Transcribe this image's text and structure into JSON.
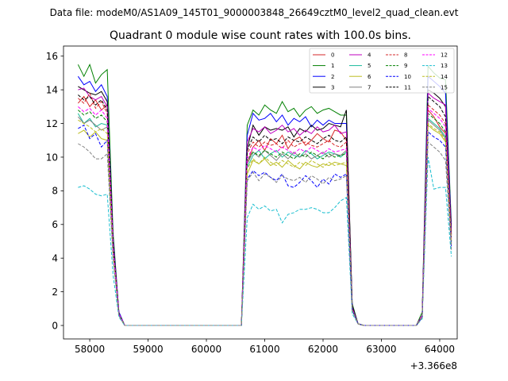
{
  "figure": {
    "suptitle": "Data file: modeM0/AS1A09_145T01_9000003848_26649cztM0_level2_quad_clean.evt"
  },
  "chart_data": {
    "type": "line",
    "title": "Quadrant 0 module wise count rates with 100.0s bins.",
    "xlabel": "",
    "ylabel": "",
    "x_offset_label": "+3.366e8",
    "xlim": [
      57550,
      64300
    ],
    "ylim": [
      -0.8,
      16.6
    ],
    "x_ticks": [
      58000,
      59000,
      60000,
      61000,
      62000,
      63000,
      64000
    ],
    "y_ticks": [
      0,
      2,
      4,
      6,
      8,
      10,
      12,
      14,
      16
    ],
    "grid": false,
    "legend_position": "top-right",
    "legend_columns": 4,
    "x": [
      57800,
      57900,
      58000,
      58100,
      58200,
      58300,
      58400,
      58500,
      58600,
      58700,
      58800,
      58900,
      59000,
      59100,
      59200,
      59300,
      59400,
      59500,
      59600,
      59700,
      59800,
      59900,
      60000,
      60100,
      60200,
      60300,
      60400,
      60500,
      60600,
      60700,
      60800,
      60900,
      61000,
      61100,
      61200,
      61300,
      61400,
      61500,
      61600,
      61700,
      61800,
      61900,
      62000,
      62100,
      62200,
      62300,
      62400,
      62500,
      62600,
      62700,
      62800,
      62900,
      63000,
      63100,
      63200,
      63300,
      63400,
      63500,
      63600,
      63700,
      63800,
      63900,
      64000,
      64100,
      64200
    ],
    "series": [
      {
        "name": "0",
        "color": "#d62728",
        "dash": "solid",
        "values": [
          13.2,
          13.6,
          13.0,
          13.4,
          12.8,
          13.1,
          5.3,
          0.7,
          0,
          0,
          0,
          0,
          0,
          0,
          0,
          0,
          0,
          0,
          0,
          0,
          0,
          0,
          0,
          0,
          0,
          0,
          0,
          0,
          0,
          9.6,
          10.6,
          11.0,
          10.4,
          11.1,
          10.8,
          11.3,
          10.5,
          11.0,
          11.2,
          10.7,
          11.0,
          11.4,
          11.1,
          10.9,
          11.6,
          11.5,
          11.0,
          1.0,
          0.1,
          0,
          0,
          0,
          0,
          0,
          0,
          0,
          0,
          0,
          0,
          0.5,
          12.8,
          12.4,
          11.8,
          11.4,
          5.4
        ]
      },
      {
        "name": "1",
        "color": "#008000",
        "dash": "solid",
        "values": [
          15.5,
          14.8,
          15.5,
          14.4,
          14.9,
          15.2,
          5.5,
          0.8,
          0,
          0,
          0,
          0,
          0,
          0,
          0,
          0,
          0,
          0,
          0,
          0,
          0,
          0,
          0,
          0,
          0,
          0,
          0,
          0,
          0,
          11.9,
          12.8,
          12.5,
          13.1,
          12.8,
          12.6,
          13.3,
          12.7,
          12.9,
          12.4,
          12.8,
          13.0,
          12.6,
          12.8,
          12.9,
          12.7,
          12.5,
          12.5,
          1.3,
          0.1,
          0,
          0,
          0,
          0,
          0,
          0,
          0,
          0,
          0,
          0,
          0.8,
          15.4,
          15.0,
          14.7,
          14.6,
          6.0
        ]
      },
      {
        "name": "2",
        "color": "#0000ff",
        "dash": "solid",
        "values": [
          14.8,
          14.3,
          14.5,
          13.9,
          14.3,
          13.6,
          5.2,
          0.8,
          0,
          0,
          0,
          0,
          0,
          0,
          0,
          0,
          0,
          0,
          0,
          0,
          0,
          0,
          0,
          0,
          0,
          0,
          0,
          0,
          0,
          11.3,
          12.6,
          12.2,
          12.3,
          12.6,
          12.1,
          12.5,
          11.9,
          12.3,
          12.1,
          12.4,
          11.8,
          12.2,
          11.9,
          12.2,
          12.0,
          12.0,
          12.0,
          1.2,
          0.1,
          0,
          0,
          0,
          0,
          0,
          0,
          0,
          0,
          0,
          0,
          0.6,
          14.8,
          14.5,
          14.2,
          13.8,
          5.8
        ]
      },
      {
        "name": "3",
        "color": "#000000",
        "dash": "solid",
        "values": [
          14.2,
          14.0,
          13.8,
          13.7,
          13.9,
          13.3,
          5.0,
          0.7,
          0,
          0,
          0,
          0,
          0,
          0,
          0,
          0,
          0,
          0,
          0,
          0,
          0,
          0,
          0,
          0,
          0,
          0,
          0,
          0,
          0,
          10.5,
          11.9,
          11.3,
          11.8,
          11.6,
          11.7,
          11.6,
          11.8,
          11.2,
          11.7,
          11.5,
          11.9,
          11.6,
          11.7,
          12.0,
          11.9,
          11.8,
          12.8,
          1.2,
          0.1,
          0,
          0,
          0,
          0,
          0,
          0,
          0,
          0,
          0,
          0,
          0.6,
          14.0,
          13.8,
          13.5,
          13.0,
          5.6
        ]
      },
      {
        "name": "4",
        "color": "#bf00bf",
        "dash": "solid",
        "values": [
          14.0,
          14.1,
          13.6,
          13.4,
          13.6,
          13.0,
          4.9,
          0.7,
          0,
          0,
          0,
          0,
          0,
          0,
          0,
          0,
          0,
          0,
          0,
          0,
          0,
          0,
          0,
          0,
          0,
          0,
          0,
          0,
          0,
          10.9,
          11.7,
          11.5,
          11.8,
          11.4,
          11.6,
          11.9,
          11.5,
          11.7,
          11.3,
          11.6,
          11.4,
          11.8,
          11.5,
          11.6,
          11.9,
          11.4,
          11.5,
          1.1,
          0.1,
          0,
          0,
          0,
          0,
          0,
          0,
          0,
          0,
          0,
          0,
          0.6,
          13.8,
          13.5,
          13.3,
          13.1,
          5.5
        ]
      },
      {
        "name": "5",
        "color": "#1abc9c",
        "dash": "solid",
        "values": [
          12.6,
          12.0,
          12.3,
          11.8,
          12.0,
          11.9,
          4.5,
          0.6,
          0,
          0,
          0,
          0,
          0,
          0,
          0,
          0,
          0,
          0,
          0,
          0,
          0,
          0,
          0,
          0,
          0,
          0,
          0,
          0,
          0,
          9.4,
          10.1,
          10.4,
          9.9,
          10.2,
          10.4,
          10.0,
          10.3,
          10.1,
          10.0,
          10.4,
          10.2,
          9.9,
          10.1,
          10.3,
          10.2,
          10.0,
          10.3,
          1.0,
          0.1,
          0,
          0,
          0,
          0,
          0,
          0,
          0,
          0,
          0,
          0,
          0.5,
          12.3,
          12.0,
          11.7,
          11.2,
          5.0
        ]
      },
      {
        "name": "6",
        "color": "#bcbd22",
        "dash": "solid",
        "values": [
          11.4,
          11.6,
          11.2,
          11.5,
          11.1,
          11.0,
          4.2,
          0.6,
          0,
          0,
          0,
          0,
          0,
          0,
          0,
          0,
          0,
          0,
          0,
          0,
          0,
          0,
          0,
          0,
          0,
          0,
          0,
          0,
          0,
          9.0,
          9.8,
          9.6,
          9.9,
          9.5,
          9.7,
          9.4,
          9.8,
          9.5,
          9.3,
          9.7,
          9.5,
          9.4,
          9.6,
          9.5,
          9.7,
          9.6,
          9.5,
          0.9,
          0.1,
          0,
          0,
          0,
          0,
          0,
          0,
          0,
          0,
          0,
          0,
          0.5,
          11.9,
          11.6,
          11.4,
          10.9,
          4.8
        ]
      },
      {
        "name": "7",
        "color": "#808080",
        "dash": "solid",
        "values": [
          12.4,
          12.0,
          12.2,
          11.9,
          11.6,
          11.8,
          4.6,
          0.7,
          0,
          0,
          0,
          0,
          0,
          0,
          0,
          0,
          0,
          0,
          0,
          0,
          0,
          0,
          0,
          0,
          0,
          0,
          0,
          0,
          0,
          9.6,
          10.3,
          10.0,
          10.4,
          10.1,
          9.8,
          10.2,
          9.9,
          10.3,
          10.0,
          10.2,
          9.9,
          10.1,
          10.3,
          10.0,
          10.2,
          10.1,
          10.4,
          1.0,
          0.1,
          0,
          0,
          0,
          0,
          0,
          0,
          0,
          0,
          0,
          0,
          0.5,
          12.2,
          11.9,
          11.6,
          11.1,
          4.9
        ]
      },
      {
        "name": "8",
        "color": "#d62728",
        "dash": "dashed",
        "values": [
          13.5,
          13.2,
          13.8,
          12.9,
          13.3,
          12.6,
          4.8,
          0.7,
          0,
          0,
          0,
          0,
          0,
          0,
          0,
          0,
          0,
          0,
          0,
          0,
          0,
          0,
          0,
          0,
          0,
          0,
          0,
          0,
          0,
          10.2,
          10.9,
          10.6,
          10.9,
          10.7,
          10.8,
          10.5,
          11.0,
          10.6,
          10.8,
          10.9,
          10.7,
          10.6,
          10.8,
          11.0,
          10.7,
          10.6,
          10.9,
          1.0,
          0.1,
          0,
          0,
          0,
          0,
          0,
          0,
          0,
          0,
          0,
          0,
          0.6,
          13.1,
          12.8,
          12.5,
          12.0,
          5.2
        ]
      },
      {
        "name": "9",
        "color": "#008000",
        "dash": "dashed",
        "values": [
          12.8,
          12.5,
          12.7,
          12.3,
          12.5,
          12.1,
          4.6,
          0.7,
          0,
          0,
          0,
          0,
          0,
          0,
          0,
          0,
          0,
          0,
          0,
          0,
          0,
          0,
          0,
          0,
          0,
          0,
          0,
          0,
          0,
          9.8,
          10.3,
          10.1,
          10.4,
          10.2,
          10.0,
          10.3,
          10.1,
          9.9,
          10.2,
          10.0,
          10.3,
          10.1,
          9.9,
          10.2,
          10.0,
          10.1,
          10.2,
          1.0,
          0.1,
          0,
          0,
          0,
          0,
          0,
          0,
          0,
          0,
          0,
          0,
          0.5,
          12.6,
          12.3,
          12.0,
          11.5,
          5.0
        ]
      },
      {
        "name": "10",
        "color": "#0000ff",
        "dash": "dashed",
        "values": [
          11.7,
          11.9,
          11.1,
          11.4,
          10.6,
          11.0,
          4.2,
          0.6,
          0,
          0,
          0,
          0,
          0,
          0,
          0,
          0,
          0,
          0,
          0,
          0,
          0,
          0,
          0,
          0,
          0,
          0,
          0,
          0,
          0,
          8.7,
          9.2,
          8.9,
          9.1,
          8.8,
          8.6,
          9.0,
          8.3,
          8.2,
          8.5,
          8.9,
          8.6,
          8.2,
          8.7,
          8.4,
          9.0,
          8.8,
          9.0,
          0.9,
          0.1,
          0,
          0,
          0,
          0,
          0,
          0,
          0,
          0,
          0,
          0,
          0.5,
          11.5,
          11.2,
          11.0,
          10.6,
          4.7
        ]
      },
      {
        "name": "11",
        "color": "#000000",
        "dash": "dashed",
        "values": [
          13.7,
          13.4,
          13.6,
          13.1,
          13.4,
          12.8,
          4.9,
          0.7,
          0,
          0,
          0,
          0,
          0,
          0,
          0,
          0,
          0,
          0,
          0,
          0,
          0,
          0,
          0,
          0,
          0,
          0,
          0,
          0,
          0,
          10.4,
          11.2,
          10.9,
          11.3,
          11.0,
          11.1,
          10.8,
          11.2,
          11.0,
          10.9,
          11.2,
          11.0,
          10.8,
          11.1,
          11.3,
          11.0,
          10.9,
          11.2,
          1.1,
          0.1,
          0,
          0,
          0,
          0,
          0,
          0,
          0,
          0,
          0,
          0,
          0.6,
          13.6,
          13.3,
          13.0,
          12.4,
          5.4
        ]
      },
      {
        "name": "12",
        "color": "#ff00ff",
        "dash": "dashed",
        "values": [
          13.0,
          12.7,
          12.9,
          12.5,
          12.8,
          12.3,
          4.7,
          0.7,
          0,
          0,
          0,
          0,
          0,
          0,
          0,
          0,
          0,
          0,
          0,
          0,
          0,
          0,
          0,
          0,
          0,
          0,
          0,
          0,
          0,
          9.9,
          10.6,
          10.4,
          10.7,
          10.5,
          10.3,
          10.6,
          10.4,
          10.2,
          10.5,
          10.3,
          10.6,
          10.4,
          10.2,
          10.5,
          10.3,
          10.4,
          10.5,
          1.0,
          0.1,
          0,
          0,
          0,
          0,
          0,
          0,
          0,
          0,
          0,
          0,
          0.6,
          12.9,
          12.6,
          12.3,
          11.8,
          5.1
        ]
      },
      {
        "name": "13",
        "color": "#17becf",
        "dash": "dashed",
        "values": [
          8.2,
          8.3,
          8.1,
          7.8,
          7.7,
          7.8,
          3.0,
          0.5,
          0,
          0,
          0,
          0,
          0,
          0,
          0,
          0,
          0,
          0,
          0,
          0,
          0,
          0,
          0,
          0,
          0,
          0,
          0,
          0,
          0,
          6.4,
          7.2,
          6.9,
          7.1,
          6.8,
          6.9,
          6.1,
          6.6,
          6.7,
          6.9,
          6.9,
          7.0,
          6.9,
          6.7,
          6.7,
          7.0,
          7.4,
          7.6,
          0.7,
          0.1,
          0,
          0,
          0,
          0,
          0,
          0,
          0,
          0,
          0,
          0,
          0.4,
          10.0,
          8.1,
          8.2,
          8.2,
          4.1
        ]
      },
      {
        "name": "14",
        "color": "#bcbd22",
        "dash": "dashed",
        "values": [
          12.2,
          12.0,
          11.8,
          11.5,
          11.7,
          11.4,
          4.3,
          0.6,
          0,
          0,
          0,
          0,
          0,
          0,
          0,
          0,
          0,
          0,
          0,
          0,
          0,
          0,
          0,
          0,
          0,
          0,
          0,
          0,
          0,
          9.3,
          9.9,
          9.6,
          10.0,
          9.7,
          9.5,
          9.8,
          9.6,
          9.4,
          9.7,
          9.5,
          9.8,
          9.6,
          9.4,
          9.7,
          9.5,
          9.6,
          9.7,
          0.9,
          0.1,
          0,
          0,
          0,
          0,
          0,
          0,
          0,
          0,
          0,
          0,
          0.5,
          12.0,
          11.7,
          11.5,
          11.0,
          4.9
        ]
      },
      {
        "name": "15",
        "color": "#808080",
        "dash": "dashed",
        "values": [
          10.8,
          10.6,
          10.3,
          9.9,
          9.9,
          10.2,
          4.0,
          0.6,
          0,
          0,
          0,
          0,
          0,
          0,
          0,
          0,
          0,
          0,
          0,
          0,
          0,
          0,
          0,
          0,
          0,
          0,
          0,
          0,
          0,
          8.6,
          9.1,
          8.6,
          9.0,
          8.8,
          8.5,
          8.9,
          8.7,
          8.6,
          8.8,
          8.5,
          8.9,
          8.7,
          8.4,
          8.8,
          8.6,
          8.7,
          8.9,
          0.9,
          0.1,
          0,
          0,
          0,
          0,
          0,
          0,
          0,
          0,
          0,
          0,
          0.5,
          10.9,
          10.6,
          10.3,
          9.8,
          4.5
        ]
      }
    ]
  }
}
